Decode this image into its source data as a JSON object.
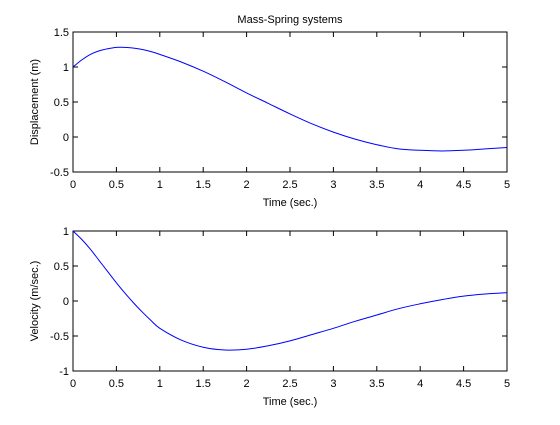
{
  "chart_data": [
    {
      "type": "line",
      "title": "Mass-Spring systems",
      "xlabel": "Time (sec.)",
      "ylabel": "Displacement (m)",
      "xlim": [
        0,
        5
      ],
      "ylim": [
        -0.5,
        1.5
      ],
      "xticks": [
        0,
        0.5,
        1,
        1.5,
        2,
        2.5,
        3,
        3.5,
        4,
        4.5,
        5
      ],
      "yticks": [
        -0.5,
        0,
        0.5,
        1,
        1.5
      ],
      "xtick_labels": [
        "0",
        "0.5",
        "1",
        "1.5",
        "2",
        "2.5",
        "3",
        "3.5",
        "4",
        "4.5",
        "5"
      ],
      "ytick_labels": [
        "-0.5",
        "0",
        "0.5",
        "1",
        "1.5"
      ],
      "grid": false,
      "series": [
        {
          "color": "#0000ff",
          "x": [
            0,
            0.1,
            0.2,
            0.3,
            0.4,
            0.5,
            0.6,
            0.7,
            0.8,
            0.9,
            1.0,
            1.25,
            1.5,
            1.75,
            2.0,
            2.25,
            2.5,
            2.75,
            3.0,
            3.25,
            3.5,
            3.75,
            4.0,
            4.25,
            4.5,
            4.75,
            5.0
          ],
          "y": [
            1.0,
            1.1,
            1.18,
            1.23,
            1.26,
            1.28,
            1.28,
            1.27,
            1.25,
            1.22,
            1.18,
            1.07,
            0.94,
            0.79,
            0.63,
            0.48,
            0.33,
            0.19,
            0.07,
            -0.03,
            -0.11,
            -0.17,
            -0.19,
            -0.2,
            -0.19,
            -0.17,
            -0.15
          ]
        }
      ]
    },
    {
      "type": "line",
      "title": "",
      "xlabel": "Time (sec.)",
      "ylabel": "Velocity (m/sec.)",
      "xlim": [
        0,
        5
      ],
      "ylim": [
        -1,
        1
      ],
      "xticks": [
        0,
        0.5,
        1,
        1.5,
        2,
        2.5,
        3,
        3.5,
        4,
        4.5,
        5
      ],
      "yticks": [
        -1,
        -0.5,
        0,
        0.5,
        1
      ],
      "xtick_labels": [
        "0",
        "0.5",
        "1",
        "1.5",
        "2",
        "2.5",
        "3",
        "3.5",
        "4",
        "4.5",
        "5"
      ],
      "ytick_labels": [
        "-1",
        "-0.5",
        "0",
        "0.5",
        "1"
      ],
      "grid": false,
      "series": [
        {
          "color": "#0000ff",
          "x": [
            0,
            0.1,
            0.2,
            0.3,
            0.4,
            0.5,
            0.6,
            0.7,
            0.8,
            0.9,
            1.0,
            1.25,
            1.5,
            1.75,
            2.0,
            2.25,
            2.5,
            2.75,
            3.0,
            3.25,
            3.5,
            3.75,
            4.0,
            4.25,
            4.5,
            4.75,
            5.0
          ],
          "y": [
            1.0,
            0.88,
            0.74,
            0.58,
            0.42,
            0.26,
            0.11,
            -0.03,
            -0.16,
            -0.28,
            -0.39,
            -0.56,
            -0.66,
            -0.7,
            -0.69,
            -0.64,
            -0.57,
            -0.48,
            -0.39,
            -0.29,
            -0.2,
            -0.11,
            -0.04,
            0.02,
            0.07,
            0.1,
            0.12
          ]
        }
      ]
    }
  ]
}
